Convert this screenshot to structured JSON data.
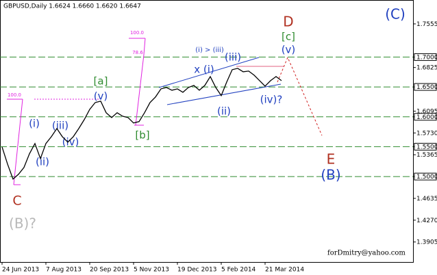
{
  "chart_data": {
    "type": "line",
    "title": "GBPUSD,Daily  1.6624 1.6660 1.6620 1.6647",
    "categories": [
      "24 Jun 2013",
      null,
      null,
      null,
      null,
      null,
      null,
      null,
      "7 Aug 2013",
      null,
      null,
      null,
      null,
      null,
      null,
      null,
      "20 Sep 2013",
      null,
      null,
      null,
      null,
      null,
      null,
      null,
      "5 Nov 2013",
      null,
      null,
      null,
      null,
      null,
      null,
      null,
      "19 Dec 2013",
      null,
      null,
      null,
      null,
      null,
      null,
      null,
      "5 Feb 2014",
      null,
      null,
      null,
      null,
      null,
      null,
      null,
      "21 Mar 2014",
      null,
      null,
      null
    ],
    "values": [
      1.5496,
      1.5209,
      1.4958,
      1.5038,
      1.5152,
      1.5381,
      1.5553,
      1.5301,
      1.5553,
      1.5667,
      1.5804,
      1.5667,
      1.5576,
      1.5667,
      1.5804,
      1.5953,
      1.6125,
      1.6239,
      1.6262,
      1.6068,
      1.5987,
      1.6068,
      1.601,
      1.5987,
      1.5896,
      1.5919,
      1.6068,
      1.6239,
      1.6331,
      1.6468,
      1.6491,
      1.6445,
      1.6468,
      1.6411,
      1.6491,
      1.6525,
      1.6445,
      1.6525,
      1.6674,
      1.6491,
      1.6354,
      1.6582,
      1.6788,
      1.6811,
      1.6754,
      1.6766,
      1.6697,
      1.6605,
      1.6514,
      1.6605,
      1.6674,
      1.6605
    ],
    "color": "#000000",
    "ylim": [
      1.357,
      1.7955
    ],
    "yticks": [
      {
        "value": 1.7555,
        "label": "1.7555"
      },
      {
        "value": 1.7,
        "label": "1.7000"
      },
      {
        "value": 1.6825,
        "label": "1.6825"
      },
      {
        "value": 1.65,
        "label": "1.6500"
      },
      {
        "value": 1.6095,
        "label": "1.6095"
      },
      {
        "value": 1.6,
        "label": "1.6000"
      },
      {
        "value": 1.573,
        "label": "1.5730"
      },
      {
        "value": 1.55,
        "label": "1.5500"
      },
      {
        "value": 1.5365,
        "label": "1.5365"
      },
      {
        "value": 1.5,
        "label": "1.5000"
      },
      {
        "value": 1.4635,
        "label": "1.4635"
      },
      {
        "value": 1.427,
        "label": "1.4270"
      },
      {
        "value": 1.3905,
        "label": "1.3905"
      }
    ],
    "levels": [
      1.7,
      1.65,
      1.6,
      1.55,
      1.5
    ],
    "level_color": "#2e8b2e",
    "annotations": [
      "(C)",
      "D",
      "[c]",
      "(v)",
      "(i) > (iii)",
      "(iii)",
      "x (i)",
      "(iv)?",
      "(ii)",
      "[a]",
      "(v)",
      "[b]",
      "(iii)",
      "(iv)",
      "(i)",
      "(ii)",
      "C",
      "(B)?",
      "E",
      "(B)",
      "100.0",
      "78.6",
      "100.0",
      "forDmitry@yahoo.com"
    ]
  }
}
